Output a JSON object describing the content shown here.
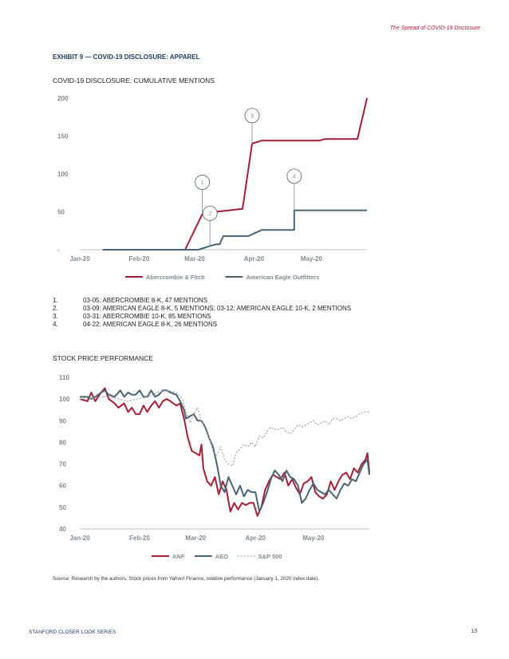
{
  "header": {
    "running_title": "The Spread of COVID-19 Disclosure",
    "exhibit_title": "EXHIBIT 9 — COVID-19 DISCLOSURE: APPAREL"
  },
  "chart_data": [
    {
      "type": "line",
      "title": "COVID-19 DISCLOSURE: CUMULATIVE MENTIONS",
      "x_ticks": [
        "Jan-20",
        "Feb-20",
        "Mar-20",
        "Apr-20",
        "May-20"
      ],
      "x_tick_days": [
        0,
        31,
        60,
        91,
        121
      ],
      "x_range": [
        0,
        150
      ],
      "y_ticks": [
        "200",
        "150",
        "100",
        "50",
        "-"
      ],
      "y_tick_values": [
        200,
        150,
        100,
        50,
        0
      ],
      "ylim": [
        0,
        200
      ],
      "colors": {
        "ANF": "#a31f34",
        "AEO": "#4a6374",
        "axis": "#bfbfbf"
      },
      "series": [
        {
          "name": "Abercrombie & Fitch",
          "color": "#a31f34",
          "points": [
            [
              12,
              0
            ],
            [
              55,
              0
            ],
            [
              64,
              47
            ],
            [
              68,
              47
            ],
            [
              71,
              50
            ],
            [
              78,
              52
            ],
            [
              85,
              54
            ],
            [
              90,
              140
            ],
            [
              95,
              144
            ],
            [
              125,
              144
            ],
            [
              128,
              146
            ],
            [
              145,
              146
            ],
            [
              150,
              200
            ]
          ]
        },
        {
          "name": "American Eagle Outfitters",
          "color": "#4a6374",
          "points": [
            [
              12,
              0
            ],
            [
              62,
              0
            ],
            [
              68,
              5
            ],
            [
              71,
              7
            ],
            [
              73,
              7
            ],
            [
              75,
              18
            ],
            [
              83,
              18
            ],
            [
              88,
              18
            ],
            [
              95,
              26
            ],
            [
              100,
              26
            ],
            [
              112,
              26
            ],
            [
              112,
              52
            ],
            [
              127,
              52
            ],
            [
              135,
              52
            ],
            [
              150,
              52
            ]
          ]
        }
      ],
      "annotations": [
        {
          "label": "1",
          "day": 64,
          "value": 47,
          "bubble_value": 89
        },
        {
          "label": "2",
          "day": 68,
          "value": 5,
          "bubble_value": 48
        },
        {
          "label": "3",
          "day": 90,
          "value": 140,
          "bubble_value": 177
        },
        {
          "label": "4",
          "day": 112,
          "value": 52,
          "bubble_value": 97
        }
      ]
    },
    {
      "type": "line",
      "title": "STOCK PRICE PERFORMANCE",
      "x_ticks": [
        "Jan-20",
        "Feb-20",
        "Mar-20",
        "Apr-20",
        "May-20"
      ],
      "x_tick_days": [
        0,
        31,
        60,
        91,
        121
      ],
      "x_range": [
        0,
        150
      ],
      "y_ticks": [
        "110",
        "100",
        "90",
        "80",
        "70",
        "60",
        "50",
        "40"
      ],
      "y_tick_values": [
        110,
        100,
        90,
        80,
        70,
        60,
        50,
        40
      ],
      "ylim": [
        40,
        110
      ],
      "colors": {
        "ANF": "#a31f34",
        "AEO": "#4a6374",
        "SP": "#a6a6a6",
        "axis": "#bfbfbf"
      },
      "series": [
        {
          "name": "ANF",
          "color": "#a31f34",
          "dashed": false,
          "points": [
            [
              0,
              100
            ],
            [
              4,
              99
            ],
            [
              6,
              103
            ],
            [
              8,
              99
            ],
            [
              11,
              103
            ],
            [
              13,
              105
            ],
            [
              15,
              100
            ],
            [
              18,
              98
            ],
            [
              20,
              96
            ],
            [
              23,
              98
            ],
            [
              25,
              94
            ],
            [
              27,
              96
            ],
            [
              29,
              93
            ],
            [
              31,
              93
            ],
            [
              33,
              97
            ],
            [
              35,
              94
            ],
            [
              37,
              97
            ],
            [
              39,
              99
            ],
            [
              41,
              96
            ],
            [
              43,
              99
            ],
            [
              45,
              100
            ],
            [
              47,
              99
            ],
            [
              50,
              97
            ],
            [
              52,
              98
            ],
            [
              54,
              91
            ],
            [
              56,
              82
            ],
            [
              58,
              76
            ],
            [
              60,
              75
            ],
            [
              62,
              74
            ],
            [
              63,
              79
            ],
            [
              64,
              68
            ],
            [
              66,
              62
            ],
            [
              68,
              60
            ],
            [
              70,
              64
            ],
            [
              72,
              56
            ],
            [
              74,
              62
            ],
            [
              76,
              58
            ],
            [
              78,
              48
            ],
            [
              80,
              52
            ],
            [
              82,
              49
            ],
            [
              84,
              52
            ],
            [
              86,
              51
            ],
            [
              88,
              52
            ],
            [
              90,
              52
            ],
            [
              92,
              46
            ],
            [
              94,
              50
            ],
            [
              96,
              58
            ],
            [
              98,
              62
            ],
            [
              100,
              65
            ],
            [
              102,
              64
            ],
            [
              104,
              63
            ],
            [
              106,
              66
            ],
            [
              108,
              60
            ],
            [
              110,
              63
            ],
            [
              112,
              59
            ],
            [
              114,
              56
            ],
            [
              116,
              61
            ],
            [
              118,
              62
            ],
            [
              120,
              64
            ],
            [
              122,
              57
            ],
            [
              124,
              55
            ],
            [
              126,
              54
            ],
            [
              128,
              56
            ],
            [
              130,
              62
            ],
            [
              132,
              58
            ],
            [
              134,
              62
            ],
            [
              136,
              65
            ],
            [
              138,
              66
            ],
            [
              140,
              63
            ],
            [
              142,
              68
            ],
            [
              144,
              66
            ],
            [
              146,
              70
            ],
            [
              148,
              72
            ],
            [
              149,
              75
            ],
            [
              150,
              66
            ]
          ]
        },
        {
          "name": "AEO",
          "color": "#4a6374",
          "dashed": false,
          "points": [
            [
              0,
              101
            ],
            [
              4,
              101
            ],
            [
              6,
              100
            ],
            [
              8,
              101
            ],
            [
              11,
              103
            ],
            [
              13,
              104
            ],
            [
              15,
              102
            ],
            [
              18,
              101
            ],
            [
              21,
              104
            ],
            [
              23,
              101
            ],
            [
              25,
              103
            ],
            [
              27,
              102
            ],
            [
              29,
              102
            ],
            [
              31,
              104
            ],
            [
              33,
              101
            ],
            [
              35,
              101
            ],
            [
              37,
              104
            ],
            [
              39,
              101
            ],
            [
              41,
              102
            ],
            [
              43,
              104
            ],
            [
              45,
              104
            ],
            [
              47,
              103
            ],
            [
              50,
              102
            ],
            [
              52,
              99
            ],
            [
              54,
              95
            ],
            [
              55,
              91
            ],
            [
              57,
              92
            ],
            [
              59,
              93
            ],
            [
              61,
              90
            ],
            [
              63,
              90
            ],
            [
              65,
              87
            ],
            [
              67,
              82
            ],
            [
              69,
              78
            ],
            [
              71,
              70
            ],
            [
              73,
              60
            ],
            [
              75,
              57
            ],
            [
              77,
              64
            ],
            [
              79,
              60
            ],
            [
              81,
              56
            ],
            [
              83,
              60
            ],
            [
              85,
              55
            ],
            [
              87,
              58
            ],
            [
              89,
              57
            ],
            [
              91,
              57
            ],
            [
              93,
              48
            ],
            [
              95,
              52
            ],
            [
              97,
              57
            ],
            [
              99,
              63
            ],
            [
              101,
              67
            ],
            [
              103,
              65
            ],
            [
              105,
              62
            ],
            [
              107,
              67
            ],
            [
              109,
              64
            ],
            [
              111,
              63
            ],
            [
              113,
              60
            ],
            [
              115,
              52
            ],
            [
              117,
              54
            ],
            [
              119,
              58
            ],
            [
              121,
              61
            ],
            [
              123,
              58
            ],
            [
              125,
              57
            ],
            [
              127,
              56
            ],
            [
              129,
              58
            ],
            [
              131,
              56
            ],
            [
              133,
              54
            ],
            [
              135,
              58
            ],
            [
              137,
              61
            ],
            [
              139,
              60
            ],
            [
              141,
              63
            ],
            [
              143,
              62
            ],
            [
              145,
              66
            ],
            [
              147,
              70
            ],
            [
              149,
              72
            ],
            [
              150,
              65
            ]
          ]
        },
        {
          "name": "S&P 500",
          "color": "#a6a6a6",
          "dashed": true,
          "points": [
            [
              0,
              100
            ],
            [
              5,
              100
            ],
            [
              10,
              101
            ],
            [
              15,
              101
            ],
            [
              20,
              100
            ],
            [
              25,
              99
            ],
            [
              30,
              100
            ],
            [
              35,
              101
            ],
            [
              40,
              103
            ],
            [
              45,
              104
            ],
            [
              50,
              103
            ],
            [
              53,
              100
            ],
            [
              55,
              94
            ],
            [
              57,
              89
            ],
            [
              59,
              93
            ],
            [
              61,
              96
            ],
            [
              63,
              90
            ],
            [
              65,
              86
            ],
            [
              67,
              82
            ],
            [
              69,
              76
            ],
            [
              71,
              74
            ],
            [
              73,
              78
            ],
            [
              75,
              72
            ],
            [
              77,
              70
            ],
            [
              79,
              69
            ],
            [
              81,
              75
            ],
            [
              83,
              77
            ],
            [
              85,
              79
            ],
            [
              87,
              78
            ],
            [
              89,
              80
            ],
            [
              91,
              78
            ],
            [
              93,
              83
            ],
            [
              95,
              82
            ],
            [
              97,
              85
            ],
            [
              99,
              87
            ],
            [
              101,
              86
            ],
            [
              103,
              86
            ],
            [
              105,
              87
            ],
            [
              107,
              85
            ],
            [
              109,
              84
            ],
            [
              111,
              86
            ],
            [
              113,
              88
            ],
            [
              115,
              87
            ],
            [
              117,
              88
            ],
            [
              119,
              89
            ],
            [
              121,
              90
            ],
            [
              123,
              88
            ],
            [
              125,
              89
            ],
            [
              127,
              90
            ],
            [
              129,
              88
            ],
            [
              131,
              91
            ],
            [
              133,
              91
            ],
            [
              135,
              90
            ],
            [
              137,
              91
            ],
            [
              139,
              92
            ],
            [
              141,
              91
            ],
            [
              143,
              92
            ],
            [
              145,
              93
            ],
            [
              147,
              94
            ],
            [
              150,
              94
            ]
          ]
        }
      ]
    }
  ],
  "notes": [
    {
      "num": "1.",
      "text": "03-05: ABERCROMBIE 8-K, 47 MENTIONS"
    },
    {
      "num": "2.",
      "text": "03-09: AMERICAN EAGLE 8-K, 5 MENTIONS; 03-12: AMERICAN EAGLE 10-K, 2 MENTIONS"
    },
    {
      "num": "3.",
      "text": "03-31: ABERCROMBIE 10-K, 85 MENTIONS"
    },
    {
      "num": "4.",
      "text": "04-22: AMERICAN EAGLE 8-K, 26 MENTIONS"
    }
  ],
  "source": "Source: Research by the authors. Stock prices from Yahoo! Finance, relative performance (January 1, 2020 index date).",
  "footer": {
    "series_name": "STANFORD CLOSER LOOK SERIES",
    "page_number": "13"
  }
}
